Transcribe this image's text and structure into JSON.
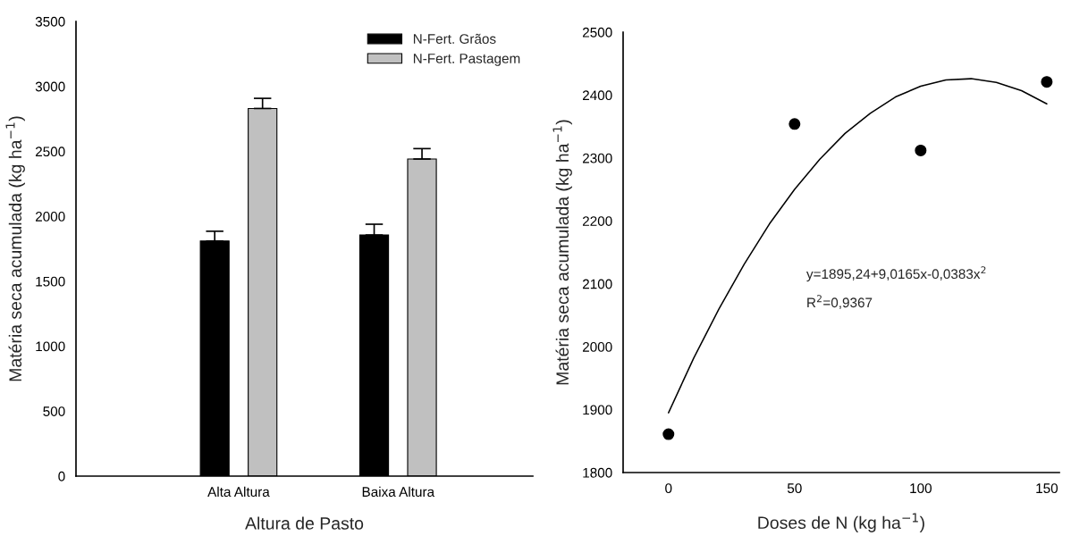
{
  "chart_data": [
    {
      "type": "bar",
      "xlabel": "Altura de Pasto",
      "ylabel": "Matéria seca acumulada (kg ha$^{−1}$)",
      "categories": [
        "Alta Altura",
        "Baixa Altura"
      ],
      "series": [
        {
          "name": "N-Fert. Grãos",
          "color": "#000000",
          "values": [
            1810,
            1856
          ],
          "errors": [
            [
              1810,
              1885
            ],
            [
              1856,
              1939
            ]
          ]
        },
        {
          "name": "N-Fert. Pastagem",
          "color": "#c0c0c0",
          "values": [
            2830,
            2441
          ],
          "errors": [
            [
              2830,
              2908
            ],
            [
              2441,
              2521
            ]
          ]
        }
      ],
      "ylim": [
        0,
        3500
      ],
      "yticks": [
        0,
        500,
        1000,
        1500,
        2000,
        2500,
        3000,
        3500
      ],
      "grid": false,
      "legend": "top right"
    },
    {
      "type": "scatter",
      "xlabel": "Doses de N (kg ha$^{−1}$)",
      "ylabel": "Matéria seca acumulada (kg ha$^{−1}$)",
      "series": [
        {
          "type": "scatter",
          "color": "#000000",
          "marker": "circle",
          "x": [
            0,
            50,
            100,
            150
          ],
          "values": [
            1861,
            2354,
            2312,
            2421
          ]
        },
        {
          "type": "line",
          "color": "#000000",
          "line_style": "solid",
          "marker": "none",
          "x": [
            0,
            10,
            20,
            30,
            40,
            50,
            60,
            70,
            80,
            90,
            100,
            110,
            120,
            130,
            140,
            150
          ],
          "values": [
            1895,
            1982,
            2060,
            2131,
            2195,
            2250,
            2298,
            2339,
            2371,
            2397,
            2414,
            2424,
            2426,
            2420,
            2407,
            2386
          ]
        }
      ],
      "annotations": [
        "y=1895,24+9,0165x-0,0383x$^{2}$",
        "R$^{2}$=0,9367"
      ],
      "xlim": [
        -18,
        155
      ],
      "xticks": [
        0,
        50,
        100,
        150
      ],
      "ylim": [
        1800,
        2500
      ],
      "yticks": [
        1800,
        1900,
        2000,
        2100,
        2200,
        2300,
        2400,
        2500
      ],
      "grid": false,
      "legend": false
    }
  ]
}
